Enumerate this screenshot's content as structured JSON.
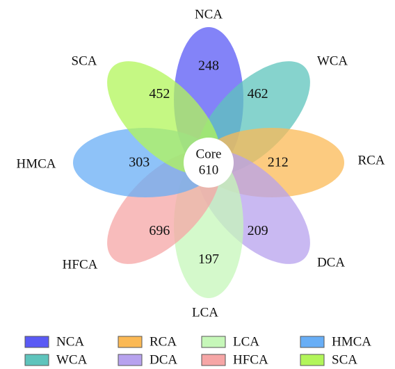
{
  "diagram": {
    "core": {
      "label": "Core",
      "count": "610"
    },
    "petals": [
      {
        "key": "nca",
        "label": "NCA",
        "count": "248",
        "color": "#5a5af5"
      },
      {
        "key": "wca",
        "label": "WCA",
        "count": "462",
        "color": "#5ec4bc"
      },
      {
        "key": "rca",
        "label": "RCA",
        "count": "212",
        "color": "#fbb955"
      },
      {
        "key": "dca",
        "label": "DCA",
        "count": "209",
        "color": "#b7a2ee"
      },
      {
        "key": "lca",
        "label": "LCA",
        "count": "197",
        "color": "#c6f7b9"
      },
      {
        "key": "hfca",
        "label": "HFCA",
        "count": "696",
        "color": "#f6a6a6"
      },
      {
        "key": "hmca",
        "label": "HMCA",
        "count": "303",
        "color": "#68aef6"
      },
      {
        "key": "sca",
        "label": "SCA",
        "count": "452",
        "color": "#b2f55a"
      }
    ]
  },
  "legend": {
    "items": [
      {
        "label": "NCA",
        "color": "#5a5af5"
      },
      {
        "label": "RCA",
        "color": "#fbb955"
      },
      {
        "label": "LCA",
        "color": "#c6f7b9"
      },
      {
        "label": "HMCA",
        "color": "#68aef6"
      },
      {
        "label": "WCA",
        "color": "#5ec4bc"
      },
      {
        "label": "DCA",
        "color": "#b7a2ee"
      },
      {
        "label": "HFCA",
        "color": "#f6a6a6"
      },
      {
        "label": "SCA",
        "color": "#b2f55a"
      }
    ]
  }
}
